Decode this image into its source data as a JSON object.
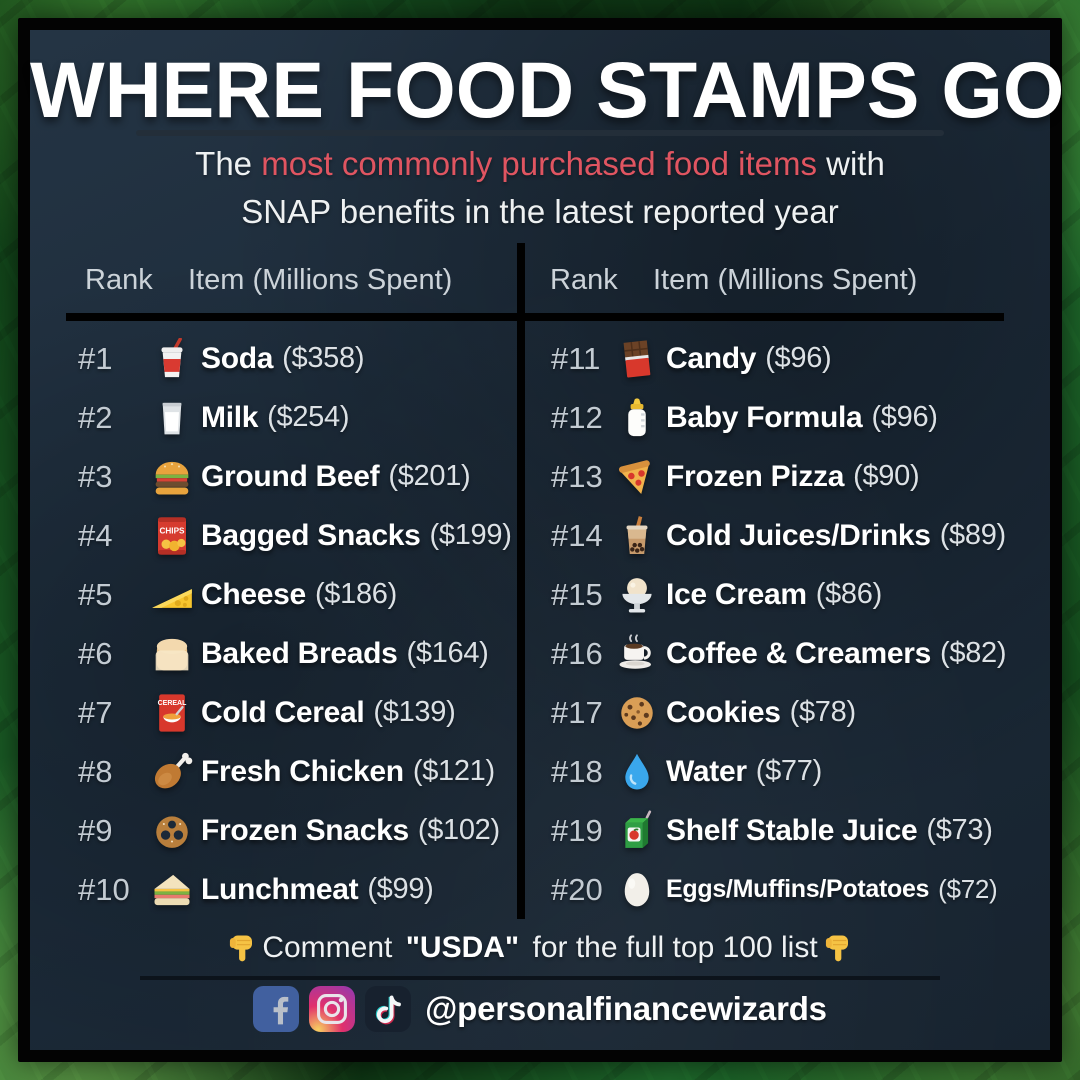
{
  "title": "WHERE FOOD STAMPS GO",
  "subtitle": {
    "prefix": "The ",
    "highlight": "most commonly purchased food items",
    "suffix": " with",
    "line2": "SNAP benefits in the latest reported year"
  },
  "colors": {
    "highlight_red": "#e05561",
    "panel_navy": "#1d2b3a",
    "frame_black": "#030303",
    "money_green": "#1c6128",
    "hand_yellow": "#f6c344"
  },
  "table": {
    "headers": {
      "rank": "Rank",
      "item": "Item (Millions Spent)"
    },
    "left_rows": [
      {
        "rank": "#1",
        "icon": "soda-cup-icon",
        "name": "Soda",
        "value": "($358)"
      },
      {
        "rank": "#2",
        "icon": "milk-glass-icon",
        "name": "Milk",
        "value": "($254)"
      },
      {
        "rank": "#3",
        "icon": "hamburger-icon",
        "name": "Ground Beef",
        "value": "($201)"
      },
      {
        "rank": "#4",
        "icon": "chips-bag-icon",
        "name": "Bagged Snacks",
        "value": "($199)"
      },
      {
        "rank": "#5",
        "icon": "cheese-icon",
        "name": "Cheese",
        "value": "($186)"
      },
      {
        "rank": "#6",
        "icon": "bread-icon",
        "name": "Baked Breads",
        "value": "($164)"
      },
      {
        "rank": "#7",
        "icon": "cereal-box-icon",
        "name": "Cold Cereal",
        "value": "($139)"
      },
      {
        "rank": "#8",
        "icon": "chicken-leg-icon",
        "name": "Fresh Chicken",
        "value": "($121)"
      },
      {
        "rank": "#9",
        "icon": "pretzel-icon",
        "name": "Frozen Snacks",
        "value": "($102)"
      },
      {
        "rank": "#10",
        "icon": "sandwich-icon",
        "name": "Lunchmeat",
        "value": "($99)"
      }
    ],
    "right_rows": [
      {
        "rank": "#11",
        "icon": "chocolate-bar-icon",
        "name": "Candy",
        "value": "($96)"
      },
      {
        "rank": "#12",
        "icon": "baby-bottle-icon",
        "name": "Baby Formula",
        "value": "($96)"
      },
      {
        "rank": "#13",
        "icon": "pizza-icon",
        "name": "Frozen Pizza",
        "value": "($90)"
      },
      {
        "rank": "#14",
        "icon": "bubble-tea-icon",
        "name": "Cold Juices/Drinks",
        "value": "($89)"
      },
      {
        "rank": "#15",
        "icon": "ice-cream-icon",
        "name": "Ice Cream",
        "value": "($86)"
      },
      {
        "rank": "#16",
        "icon": "coffee-icon",
        "name": "Coffee & Creamers",
        "value": "($82)"
      },
      {
        "rank": "#17",
        "icon": "cookie-icon",
        "name": "Cookies",
        "value": "($78)"
      },
      {
        "rank": "#18",
        "icon": "water-drop-icon",
        "name": "Water",
        "value": "($77)"
      },
      {
        "rank": "#19",
        "icon": "juice-box-icon",
        "name": "Shelf Stable Juice",
        "value": "($73)"
      },
      {
        "rank": "#20",
        "icon": "egg-icon",
        "name": "Eggs/Muffins/Potatoes",
        "value": "($72)",
        "compact": true
      }
    ]
  },
  "footer": {
    "comment_prefix": "Comment ",
    "comment_bold": "\"USDA\"",
    "comment_suffix": " for the full top 100 list",
    "hand_icon": "hand-down-icon",
    "social_icons": [
      "facebook-icon",
      "instagram-icon",
      "tiktok-icon"
    ],
    "handle": "@personalfinancewizards"
  }
}
